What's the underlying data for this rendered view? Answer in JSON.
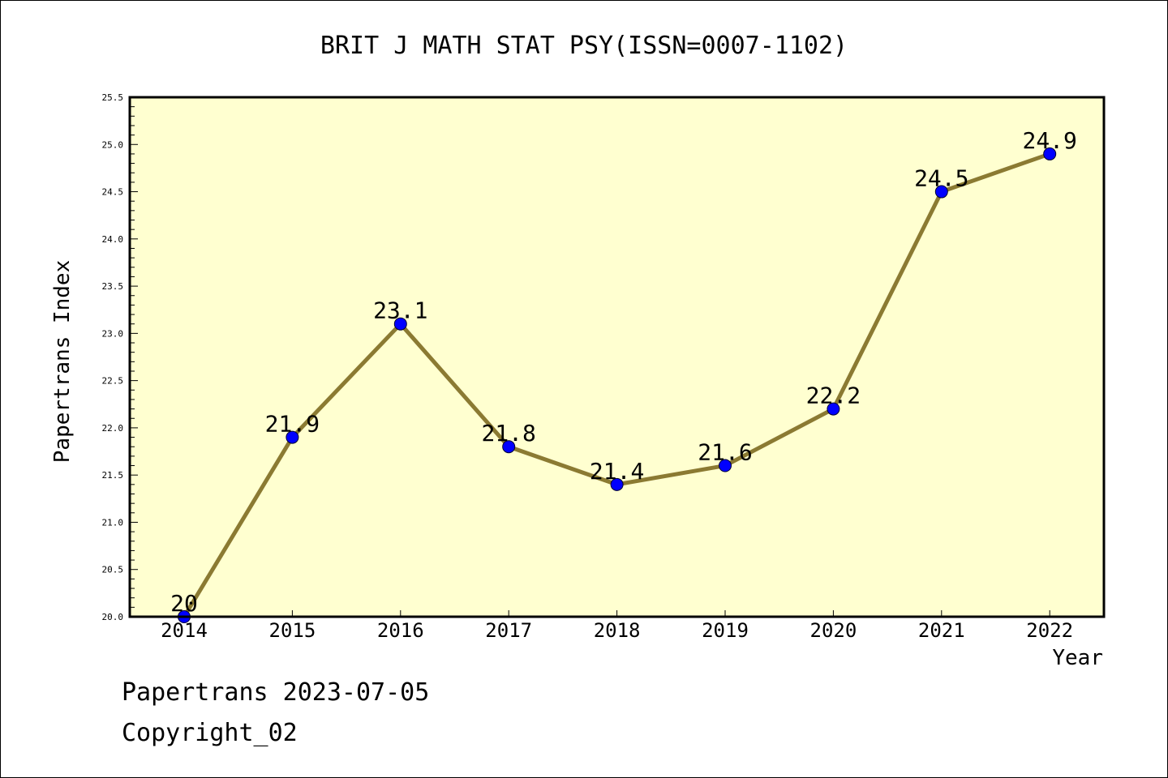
{
  "chart_data": {
    "type": "line",
    "title": "BRIT J MATH STAT PSY(ISSN=0007-1102)",
    "xlabel": "Year",
    "ylabel": "Papertrans Index",
    "x": [
      "2014",
      "2015",
      "2016",
      "2017",
      "2018",
      "2019",
      "2020",
      "2021",
      "2022"
    ],
    "series": [
      {
        "values": [
          20.0,
          21.9,
          23.1,
          21.8,
          21.4,
          21.6,
          22.2,
          24.5,
          24.9
        ],
        "labels": [
          "20",
          "21.9",
          "23.1",
          "21.8",
          "21.4",
          "21.6",
          "22.2",
          "24.5",
          "24.9"
        ],
        "line_color": "#8b7a32",
        "marker_color": "#0000ff"
      }
    ],
    "ylim": [
      20.0,
      25.5
    ],
    "yticks": [
      "20.0",
      "20.5",
      "21.0",
      "21.5",
      "22.0",
      "22.5",
      "23.0",
      "23.5",
      "24.0",
      "24.5",
      "25.0",
      "25.5"
    ],
    "background_color": "#ffffd0",
    "grid": false,
    "legend": "none"
  },
  "footer": {
    "line1": "Papertrans 2023-07-05",
    "line2": "Copyright_02"
  }
}
